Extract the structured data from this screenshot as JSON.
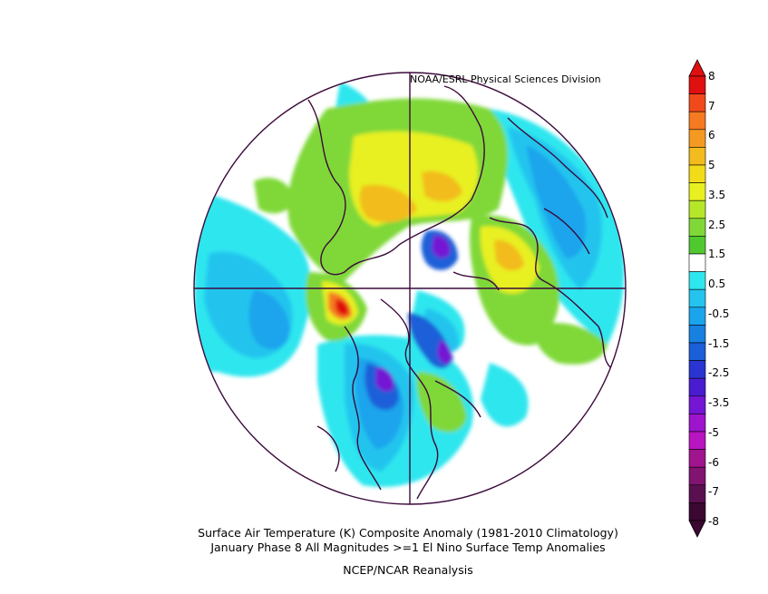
{
  "header": {
    "credit": "NOAA/ESRL Physical Sciences Division"
  },
  "footer": {
    "line1": "Surface Air Temperature (K) Composite Anomaly (1981-2010 Climatology)",
    "line2": "January Phase 8 All Magnitudes >=1 El Nino Surface Temp Anomalies",
    "line3": "NCEP/NCAR Reanalysis"
  },
  "colorbar": {
    "labels": [
      "8",
      "7",
      "6",
      "5",
      "3.5",
      "2.5",
      "1.5",
      "0.5",
      "-0.5",
      "-1.5",
      "-2.5",
      "-3.5",
      "-5",
      "-6",
      "-7",
      "-8"
    ],
    "colors": [
      "#e01010",
      "#f04a1c",
      "#f57a22",
      "#f49a22",
      "#f2bc1e",
      "#f2dc1a",
      "#e8f020",
      "#b6e62a",
      "#7fd838",
      "#50c830",
      "#ffffff",
      "#2ee6ee",
      "#24c4ee",
      "#1aa4ec",
      "#1880e0",
      "#1a5ed8",
      "#2a34d0",
      "#4a1cd0",
      "#7416d4",
      "#9c14cc",
      "#b814c0",
      "#a0148e",
      "#801470",
      "#5a1050",
      "#3a0830"
    ],
    "top_color": "#e01010",
    "bottom_color": "#3a0830"
  },
  "map": {
    "projection": "north-polar-stereographic",
    "land_outline_color": "#3b0a3b",
    "background_color": "#ffffff"
  }
}
